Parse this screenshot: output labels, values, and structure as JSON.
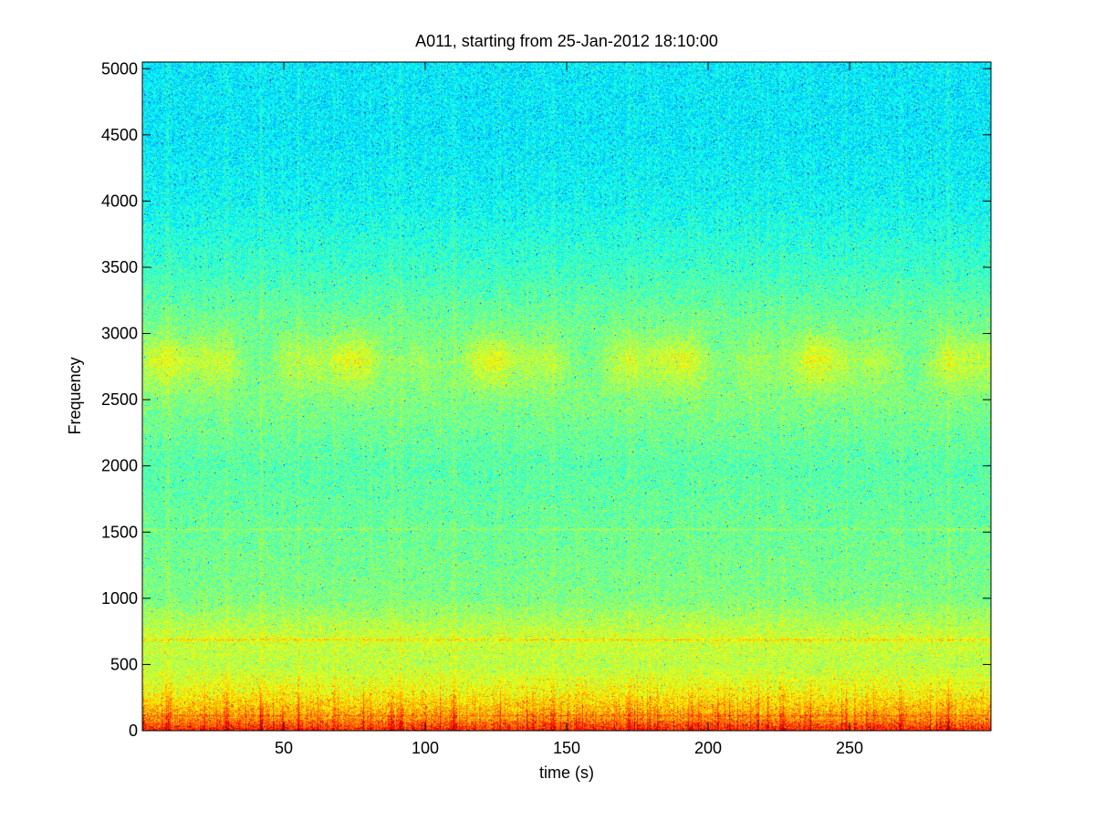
{
  "chart_data": {
    "type": "heatmap",
    "title": "A011, starting from 25-Jan-2012 18:10:00",
    "xlabel": "time (s)",
    "ylabel": "Frequency",
    "xlim": [
      0,
      300
    ],
    "ylim": [
      0,
      5050
    ],
    "xticks": [
      50,
      100,
      150,
      200,
      250
    ],
    "xtick_labels": [
      "50",
      "100",
      "150",
      "200",
      "250"
    ],
    "yticks": [
      0,
      500,
      1000,
      1500,
      2000,
      2500,
      3000,
      3500,
      4000,
      4500,
      5000
    ],
    "ytick_labels": [
      "0",
      "500",
      "1000",
      "1500",
      "2000",
      "2500",
      "3000",
      "3500",
      "4000",
      "4500",
      "5000"
    ],
    "colormap": "jet",
    "grid": false,
    "intensity_profile": {
      "description": "relative spectral level (0 = low/blue, 1 = high/red) averaged over time",
      "frequency": [
        0,
        100,
        300,
        500,
        700,
        1000,
        1500,
        2000,
        2500,
        2800,
        3000,
        3500,
        4000,
        4500,
        5000
      ],
      "level": [
        0.85,
        0.72,
        0.62,
        0.56,
        0.58,
        0.5,
        0.48,
        0.46,
        0.5,
        0.55,
        0.5,
        0.43,
        0.38,
        0.36,
        0.36
      ]
    },
    "tonal_lines_hz": [
      120,
      690,
      1520
    ],
    "broadband_burst_times_s": [
      30,
      42,
      88,
      91,
      110,
      145,
      172,
      226,
      268,
      285
    ]
  }
}
